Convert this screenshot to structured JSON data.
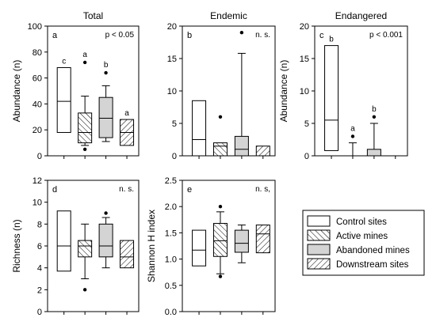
{
  "chart_data": [
    {
      "type": "box",
      "title": "Total",
      "panel_label": "a",
      "stat_text": "p < 0.05",
      "ylabel": "Abundance (n)",
      "ylim": [
        0,
        100
      ],
      "yticks": [
        "0",
        "20",
        "40",
        "60",
        "80",
        "100"
      ],
      "boxes": [
        {
          "group": "Control sites",
          "q1": 18,
          "median": 42,
          "q3": 68,
          "whisker_low": null,
          "whisker_high": null,
          "outliers": [],
          "letter": "c"
        },
        {
          "group": "Active mines",
          "q1": 10,
          "median": 18,
          "q3": 33,
          "whisker_low": 8,
          "whisker_high": 46,
          "outliers": [
            5,
            72
          ],
          "letter": "a"
        },
        {
          "group": "Abandoned mines",
          "q1": 14,
          "median": 29,
          "q3": 45,
          "whisker_low": 11,
          "whisker_high": 54,
          "outliers": [
            64
          ],
          "letter": "b"
        },
        {
          "group": "Downstream sites",
          "q1": 8,
          "median": 18,
          "q3": 28,
          "whisker_low": null,
          "whisker_high": null,
          "outliers": [],
          "letter": "a"
        }
      ]
    },
    {
      "type": "box",
      "title": "Endemic",
      "panel_label": "b",
      "stat_text": "n. s.",
      "ylabel": "",
      "ylim": [
        0,
        20
      ],
      "yticks": [
        "0",
        "5",
        "10",
        "15",
        "20"
      ],
      "boxes": [
        {
          "group": "Control sites",
          "q1": 0,
          "median": 2.5,
          "q3": 8.5,
          "whisker_low": null,
          "whisker_high": null,
          "outliers": [],
          "letter": ""
        },
        {
          "group": "Active mines",
          "q1": 0,
          "median": 1.5,
          "q3": 2,
          "whisker_low": null,
          "whisker_high": null,
          "outliers": [
            6
          ],
          "letter": ""
        },
        {
          "group": "Abandoned mines",
          "q1": 0,
          "median": 1,
          "q3": 3,
          "whisker_low": null,
          "whisker_high": 15.8,
          "outliers": [
            19
          ],
          "letter": ""
        },
        {
          "group": "Downstream sites",
          "q1": 0,
          "median": 0,
          "q3": 1.5,
          "whisker_low": null,
          "whisker_high": null,
          "outliers": [],
          "letter": ""
        }
      ]
    },
    {
      "type": "box",
      "title": "Endangered",
      "panel_label": "c",
      "stat_text": "p < 0.001",
      "ylabel": "Abundance (n)",
      "ylim": [
        0,
        20
      ],
      "yticks": [
        "0",
        "5",
        "10",
        "15",
        "20"
      ],
      "boxes": [
        {
          "group": "Control sites",
          "q1": 0.8,
          "median": 5.5,
          "q3": 17,
          "whisker_low": null,
          "whisker_high": null,
          "outliers": [],
          "letter": "b"
        },
        {
          "group": "Active mines",
          "q1": 0,
          "median": 0,
          "q3": 0,
          "whisker_low": null,
          "whisker_high": 2,
          "outliers": [
            3
          ],
          "letter": "a"
        },
        {
          "group": "Abandoned mines",
          "q1": 0,
          "median": 0,
          "q3": 1,
          "whisker_low": null,
          "whisker_high": 5,
          "outliers": [
            6
          ],
          "letter": "b"
        },
        {
          "group": "Downstream sites",
          "q1": null,
          "median": null,
          "q3": null,
          "whisker_low": null,
          "whisker_high": null,
          "outliers": [],
          "letter": ""
        }
      ]
    },
    {
      "type": "box",
      "title": "",
      "panel_label": "d",
      "stat_text": "n. s.",
      "ylabel": "Richness (n)",
      "ylim": [
        0,
        12
      ],
      "yticks": [
        "0",
        "2",
        "4",
        "6",
        "8",
        "10",
        "12"
      ],
      "boxes": [
        {
          "group": "Control sites",
          "q1": 3.7,
          "median": 6,
          "q3": 9.2,
          "whisker_low": null,
          "whisker_high": null,
          "outliers": [],
          "letter": ""
        },
        {
          "group": "Active mines",
          "q1": 5,
          "median": 6,
          "q3": 6.5,
          "whisker_low": 3,
          "whisker_high": 8,
          "outliers": [
            2
          ],
          "letter": ""
        },
        {
          "group": "Abandoned mines",
          "q1": 5,
          "median": 6,
          "q3": 8,
          "whisker_low": 4,
          "whisker_high": 8.6,
          "outliers": [
            9
          ],
          "letter": ""
        },
        {
          "group": "Downstream sites",
          "q1": 4,
          "median": 5,
          "q3": 6.5,
          "whisker_low": null,
          "whisker_high": null,
          "outliers": [],
          "letter": ""
        }
      ]
    },
    {
      "type": "box",
      "title": "",
      "panel_label": "e",
      "stat_text": "n. s,",
      "ylabel": "Shannon H index",
      "ylim": [
        0,
        2.5
      ],
      "yticks": [
        "0.0",
        "0.5",
        "1.0",
        "1.5",
        "2.0",
        "2.5"
      ],
      "boxes": [
        {
          "group": "Control sites",
          "q1": 0.87,
          "median": 1.17,
          "q3": 1.55,
          "whisker_low": null,
          "whisker_high": null,
          "outliers": [],
          "letter": ""
        },
        {
          "group": "Active mines",
          "q1": 1.05,
          "median": 1.35,
          "q3": 1.68,
          "whisker_low": 0.72,
          "whisker_high": 1.9,
          "outliers": [
            0.67,
            2.0
          ],
          "letter": ""
        },
        {
          "group": "Abandoned mines",
          "q1": 1.13,
          "median": 1.3,
          "q3": 1.55,
          "whisker_low": 0.93,
          "whisker_high": 1.65,
          "outliers": [],
          "letter": ""
        },
        {
          "group": "Downstream sites",
          "q1": 1.12,
          "median": 1.48,
          "q3": 1.65,
          "whisker_low": null,
          "whisker_high": null,
          "outliers": [],
          "letter": ""
        }
      ]
    }
  ],
  "legend": {
    "placement": "bottom-right",
    "entries": [
      {
        "label": "Control sites",
        "fill": "open"
      },
      {
        "label": "Active mines",
        "fill": "hatch-forward"
      },
      {
        "label": "Abandoned mines",
        "fill": "grey"
      },
      {
        "label": "Downstream sites",
        "fill": "hatch-back"
      }
    ]
  },
  "colors": {
    "stroke": "#000000",
    "box_open": "#ffffff",
    "box_grey": "#d4d4d4",
    "hatch": "#000000"
  }
}
